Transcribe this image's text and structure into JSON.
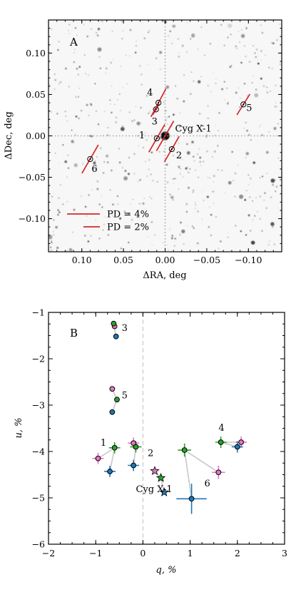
{
  "chart_data": [
    {
      "panel": "A",
      "type": "scatter",
      "xlabel": "ΔRA, deg",
      "ylabel": "ΔDec, deg",
      "xlim": [
        0.14,
        -0.14
      ],
      "ylim": [
        -0.14,
        0.14
      ],
      "x_ticks": [
        0.1,
        0.05,
        0.0,
        -0.05,
        -0.1
      ],
      "x_tick_labels": [
        "0.10",
        "0.05",
        "0.00",
        "−0.05",
        "−0.10"
      ],
      "y_ticks": [
        0.1,
        0.05,
        0.0,
        -0.05,
        -0.1
      ],
      "y_tick_labels": [
        "0.10",
        "0.05",
        "0.00",
        "−0.05",
        "−0.10"
      ],
      "background": "sky image (grayscale)",
      "crosshair": true,
      "stars": [
        {
          "label": "1",
          "x": 0.01,
          "y": -0.003,
          "pd": 3.9,
          "pa_deg": 60
        },
        {
          "label": "2",
          "x": -0.008,
          "y": -0.016,
          "pd": 3.6,
          "pa_deg": 60
        },
        {
          "label": "3",
          "x": 0.011,
          "y": 0.032,
          "pd": 1.5,
          "pa_deg": 60
        },
        {
          "label": "4",
          "x": 0.008,
          "y": 0.04,
          "pd": 3.9,
          "pa_deg": 62
        },
        {
          "label": "5",
          "x": -0.094,
          "y": 0.038,
          "pd": 3.0,
          "pa_deg": 58
        },
        {
          "label": "6",
          "x": 0.09,
          "y": -0.028,
          "pd": 4.0,
          "pa_deg": 60
        }
      ],
      "target": {
        "label": "Cyg X-1",
        "x": 0.0,
        "y": 0.0,
        "pd": 4.2,
        "pa_deg": 60
      },
      "legend": [
        {
          "label": "PD = 4%",
          "pd": 4
        },
        {
          "label": "PD = 2%",
          "pd": 2
        }
      ],
      "legend_position": "lower-left",
      "line_color": "#d62728"
    },
    {
      "panel": "B",
      "type": "scatter",
      "xlabel": "q, %",
      "ylabel": "u, %",
      "xlim": [
        -2,
        3
      ],
      "ylim": [
        -6,
        -1
      ],
      "x_ticks": [
        -2,
        -1,
        0,
        1,
        2,
        3
      ],
      "x_tick_labels": [
        "−2",
        "−1",
        "0",
        "1",
        "2",
        "3"
      ],
      "y_ticks": [
        -6,
        -5,
        -4,
        -3,
        -2,
        -1
      ],
      "y_tick_labels": [
        "−6",
        "−5",
        "−4",
        "−3",
        "−2",
        "−1"
      ],
      "zero_line": "x = 0 (dashed)",
      "series": [
        {
          "color": "#e377c2",
          "points": [
            {
              "id": "3",
              "q": -0.6,
              "u": -1.3
            },
            {
              "id": "5",
              "q": -0.65,
              "u": -2.65
            },
            {
              "id": "1",
              "q": -0.95,
              "u": -4.15
            },
            {
              "id": "2",
              "q": -0.2,
              "u": -3.82
            },
            {
              "id": "Cyg X-1",
              "q": 0.25,
              "u": -4.42
            },
            {
              "id": "4",
              "q": 2.08,
              "u": -3.8
            },
            {
              "id": "6",
              "q": 1.6,
              "u": -4.45
            }
          ]
        },
        {
          "color": "#2ca02c",
          "points": [
            {
              "id": "3",
              "q": -0.62,
              "u": -1.24
            },
            {
              "id": "5",
              "q": -0.55,
              "u": -2.88
            },
            {
              "id": "1",
              "q": -0.6,
              "u": -3.92
            },
            {
              "id": "2",
              "q": -0.15,
              "u": -3.9
            },
            {
              "id": "Cyg X-1",
              "q": 0.38,
              "u": -4.57
            },
            {
              "id": "4",
              "q": 1.65,
              "u": -3.8
            },
            {
              "id": "6",
              "q": 0.88,
              "u": -3.97
            }
          ]
        },
        {
          "color": "#1f77b4",
          "points": [
            {
              "id": "3",
              "q": -0.57,
              "u": -1.52
            },
            {
              "id": "5",
              "q": -0.65,
              "u": -3.15
            },
            {
              "id": "1",
              "q": -0.7,
              "u": -4.43
            },
            {
              "id": "2",
              "q": -0.2,
              "u": -4.3
            },
            {
              "id": "Cyg X-1",
              "q": 0.45,
              "u": -4.88
            },
            {
              "id": "4",
              "q": 2.0,
              "u": -3.9
            },
            {
              "id": "6",
              "q": 1.03,
              "u": -5.02
            }
          ]
        }
      ],
      "labels": [
        {
          "text": "3",
          "q": -0.45,
          "u": -1.4
        },
        {
          "text": "5",
          "q": -0.45,
          "u": -2.85
        },
        {
          "text": "1",
          "q": -0.9,
          "u": -3.88
        },
        {
          "text": "2",
          "q": 0.1,
          "u": -4.1
        },
        {
          "text": "Cyg X-1",
          "q": -0.15,
          "u": -4.88
        },
        {
          "text": "4",
          "q": 1.6,
          "u": -3.55
        },
        {
          "text": "6",
          "q": 1.3,
          "u": -4.75
        }
      ]
    }
  ]
}
